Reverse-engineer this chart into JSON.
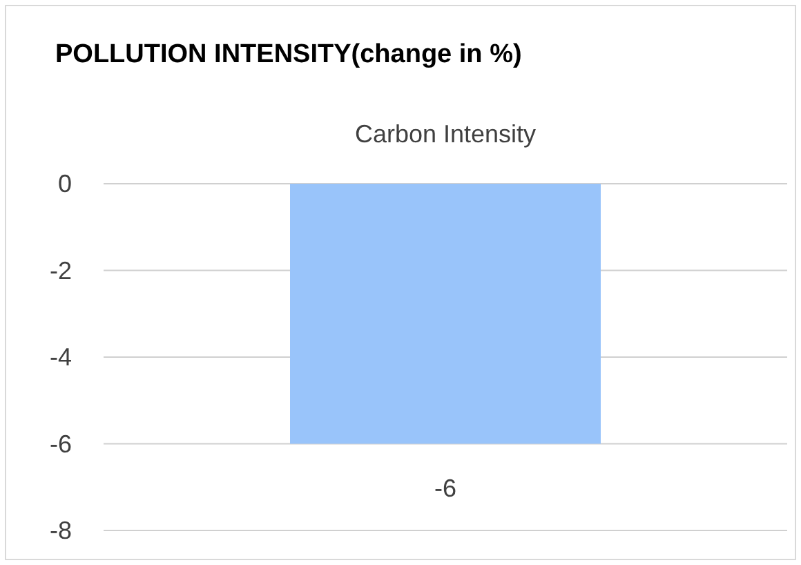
{
  "chart_data": {
    "type": "bar",
    "title": "POLLUTION INTENSITY(change in %)",
    "categories": [
      "Carbon Intensity"
    ],
    "values": [
      -6
    ],
    "color": "#99c4fa",
    "ylim": [
      -8,
      0
    ],
    "yticks": [
      -8,
      -6,
      -4,
      -2,
      0
    ],
    "grid": "y",
    "data_labels": true
  }
}
